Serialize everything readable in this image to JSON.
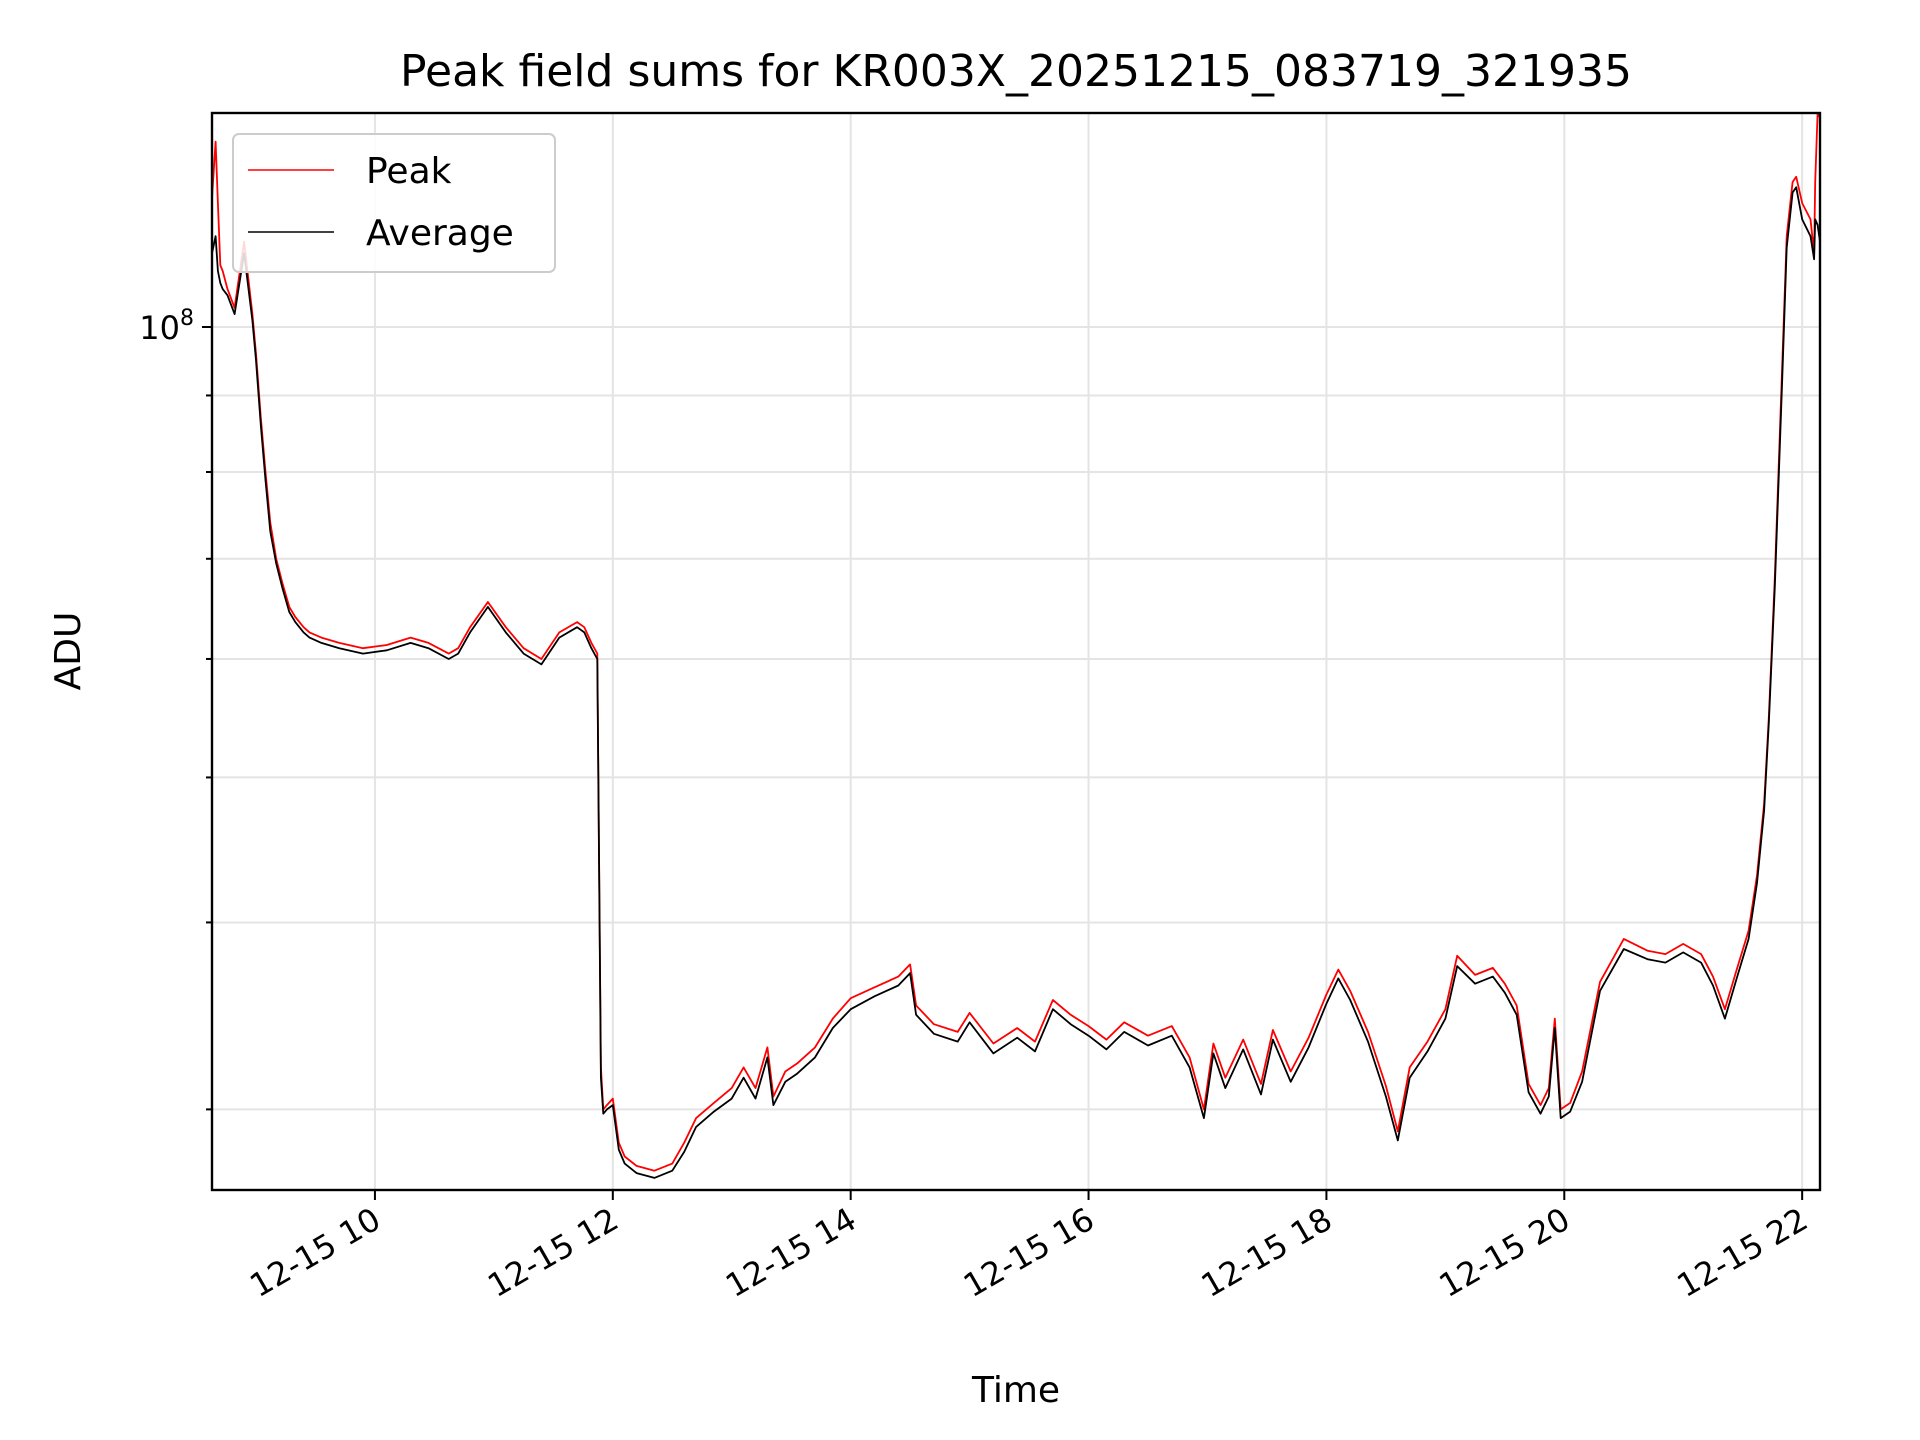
{
  "chart_data": {
    "type": "line",
    "title": "Peak field sums for KR003X_20251215_083719_321935",
    "xlabel": "Time",
    "ylabel": "ADU",
    "x_ticks": [
      "12-15 10",
      "12-15 12",
      "12-15 14",
      "12-15 16",
      "12-15 18",
      "12-15 20",
      "12-15 22"
    ],
    "x_tick_hours": [
      10,
      12,
      14,
      16,
      18,
      20,
      22
    ],
    "xlim_hours": [
      8.63,
      22.15
    ],
    "y_scale": "log",
    "ylim": [
      26500000,
      139000000
    ],
    "y_major_ticks": [
      {
        "value": 100000000,
        "base": "10",
        "exp": "8"
      }
    ],
    "y_minor_ticks": [
      30000000,
      40000000,
      50000000,
      60000000,
      70000000,
      80000000,
      90000000
    ],
    "grid": true,
    "legend": {
      "placement": "top-left",
      "entries": [
        "Peak",
        "Average"
      ]
    },
    "series": [
      {
        "name": "Peak",
        "color": "#ff0000",
        "x_hours": [
          8.63,
          8.66,
          8.68,
          8.7,
          8.72,
          8.76,
          8.82,
          8.9,
          8.97,
          9.0,
          9.04,
          9.08,
          9.12,
          9.17,
          9.22,
          9.28,
          9.33,
          9.4,
          9.45,
          9.55,
          9.7,
          9.9,
          10.1,
          10.3,
          10.45,
          10.62,
          10.7,
          10.8,
          10.95,
          11.1,
          11.25,
          11.4,
          11.55,
          11.7,
          11.76,
          11.82,
          11.87,
          11.9,
          11.92,
          11.95,
          12.0,
          12.05,
          12.1,
          12.2,
          12.35,
          12.5,
          12.6,
          12.7,
          12.85,
          13.0,
          13.1,
          13.2,
          13.3,
          13.35,
          13.45,
          13.55,
          13.7,
          13.85,
          14.0,
          14.2,
          14.4,
          14.5,
          14.55,
          14.7,
          14.9,
          15.0,
          15.2,
          15.4,
          15.55,
          15.7,
          15.85,
          16.0,
          16.15,
          16.3,
          16.5,
          16.7,
          16.85,
          16.97,
          17.05,
          17.15,
          17.3,
          17.45,
          17.55,
          17.7,
          17.85,
          18.0,
          18.1,
          18.2,
          18.35,
          18.5,
          18.6,
          18.7,
          18.85,
          19.0,
          19.1,
          19.25,
          19.4,
          19.5,
          19.6,
          19.7,
          19.8,
          19.87,
          19.92,
          19.97,
          20.05,
          20.15,
          20.3,
          20.5,
          20.7,
          20.85,
          21.0,
          21.15,
          21.25,
          21.35,
          21.45,
          21.55,
          21.62,
          21.68,
          21.72,
          21.77,
          21.83,
          21.87,
          21.92,
          21.95,
          22.0,
          22.07,
          22.1,
          22.11,
          22.13,
          22.15
        ],
        "values": [
          122000000,
          133000000,
          121000000,
          110000000,
          109000000,
          106000000,
          103000000,
          114000000,
          102000000,
          96000000,
          87000000,
          80000000,
          74000000,
          70000000,
          67500000,
          65000000,
          64000000,
          63000000,
          62500000,
          62000000,
          61500000,
          61000000,
          61300000,
          62000000,
          61500000,
          60500000,
          61000000,
          63000000,
          65500000,
          63000000,
          61000000,
          60000000,
          62500000,
          63500000,
          63000000,
          61500000,
          60500000,
          32000000,
          30000000,
          30200000,
          30500000,
          28500000,
          27900000,
          27500000,
          27300000,
          27600000,
          28500000,
          29600000,
          30300000,
          31000000,
          32000000,
          31000000,
          33000000,
          30600000,
          31800000,
          32200000,
          33000000,
          34500000,
          35600000,
          36200000,
          36800000,
          37500000,
          35200000,
          34200000,
          33800000,
          34800000,
          33200000,
          34000000,
          33300000,
          35500000,
          34700000,
          34100000,
          33400000,
          34300000,
          33600000,
          34100000,
          32500000,
          30000000,
          33200000,
          31500000,
          33400000,
          31200000,
          33900000,
          31800000,
          33500000,
          35800000,
          37200000,
          36000000,
          33800000,
          31100000,
          29000000,
          32000000,
          33300000,
          35000000,
          38000000,
          36900000,
          37300000,
          36400000,
          35200000,
          31200000,
          30200000,
          31000000,
          34500000,
          30000000,
          30300000,
          31800000,
          36500000,
          39000000,
          38300000,
          38100000,
          38700000,
          38100000,
          36800000,
          35000000,
          37200000,
          39500000,
          43000000,
          48000000,
          55000000,
          68000000,
          93000000,
          115000000,
          125000000,
          126000000,
          121000000,
          118000000,
          112000000,
          125000000,
          140000000,
          138000000
        ]
      },
      {
        "name": "Average",
        "color": "#000000",
        "x_hours": [
          8.63,
          8.66,
          8.68,
          8.7,
          8.72,
          8.76,
          8.82,
          8.9,
          8.97,
          9.0,
          9.04,
          9.08,
          9.12,
          9.17,
          9.22,
          9.28,
          9.33,
          9.4,
          9.45,
          9.55,
          9.7,
          9.9,
          10.1,
          10.3,
          10.45,
          10.62,
          10.7,
          10.8,
          10.95,
          11.1,
          11.25,
          11.4,
          11.55,
          11.7,
          11.76,
          11.82,
          11.87,
          11.9,
          11.92,
          11.95,
          12.0,
          12.05,
          12.1,
          12.2,
          12.35,
          12.5,
          12.6,
          12.7,
          12.85,
          13.0,
          13.1,
          13.2,
          13.3,
          13.35,
          13.45,
          13.55,
          13.7,
          13.85,
          14.0,
          14.2,
          14.4,
          14.5,
          14.55,
          14.7,
          14.9,
          15.0,
          15.2,
          15.4,
          15.55,
          15.7,
          15.85,
          16.0,
          16.15,
          16.3,
          16.5,
          16.7,
          16.85,
          16.97,
          17.05,
          17.15,
          17.3,
          17.45,
          17.55,
          17.7,
          17.85,
          18.0,
          18.1,
          18.2,
          18.35,
          18.5,
          18.6,
          18.7,
          18.85,
          19.0,
          19.1,
          19.25,
          19.4,
          19.5,
          19.6,
          19.7,
          19.8,
          19.87,
          19.92,
          19.97,
          20.05,
          20.15,
          20.3,
          20.5,
          20.7,
          20.85,
          21.0,
          21.15,
          21.25,
          21.35,
          21.45,
          21.55,
          21.62,
          21.68,
          21.72,
          21.77,
          21.83,
          21.87,
          21.92,
          21.95,
          22.0,
          22.07,
          22.1,
          22.11,
          22.13,
          22.15
        ],
        "values": [
          112000000,
          115000000,
          109000000,
          107000000,
          106000000,
          105000000,
          102000000,
          112000000,
          101000000,
          95000000,
          86000000,
          79000000,
          73000000,
          69500000,
          67000000,
          64500000,
          63500000,
          62500000,
          62000000,
          61500000,
          61000000,
          60500000,
          60800000,
          61500000,
          61000000,
          60000000,
          60500000,
          62500000,
          65000000,
          62500000,
          60500000,
          59500000,
          62000000,
          63000000,
          62500000,
          61000000,
          60000000,
          31500000,
          29800000,
          30000000,
          30200000,
          28200000,
          27600000,
          27200000,
          27000000,
          27300000,
          28100000,
          29200000,
          29900000,
          30500000,
          31500000,
          30500000,
          32500000,
          30200000,
          31300000,
          31700000,
          32500000,
          34000000,
          35000000,
          35700000,
          36300000,
          37000000,
          34700000,
          33700000,
          33300000,
          34300000,
          32700000,
          33500000,
          32800000,
          35000000,
          34200000,
          33600000,
          32900000,
          33800000,
          33100000,
          33600000,
          32000000,
          29600000,
          32700000,
          31000000,
          32900000,
          30700000,
          33400000,
          31300000,
          33000000,
          35300000,
          36700000,
          35500000,
          33300000,
          30600000,
          28600000,
          31500000,
          32800000,
          34500000,
          37400000,
          36400000,
          36800000,
          35900000,
          34700000,
          30800000,
          29800000,
          30600000,
          34000000,
          29600000,
          29900000,
          31300000,
          36000000,
          38400000,
          37800000,
          37600000,
          38200000,
          37600000,
          36300000,
          34500000,
          36700000,
          39000000,
          42500000,
          47500000,
          54500000,
          67000000,
          91000000,
          113000000,
          123000000,
          124000000,
          118000000,
          115000000,
          111000000,
          118000000,
          117000000,
          114000000
        ]
      }
    ]
  }
}
